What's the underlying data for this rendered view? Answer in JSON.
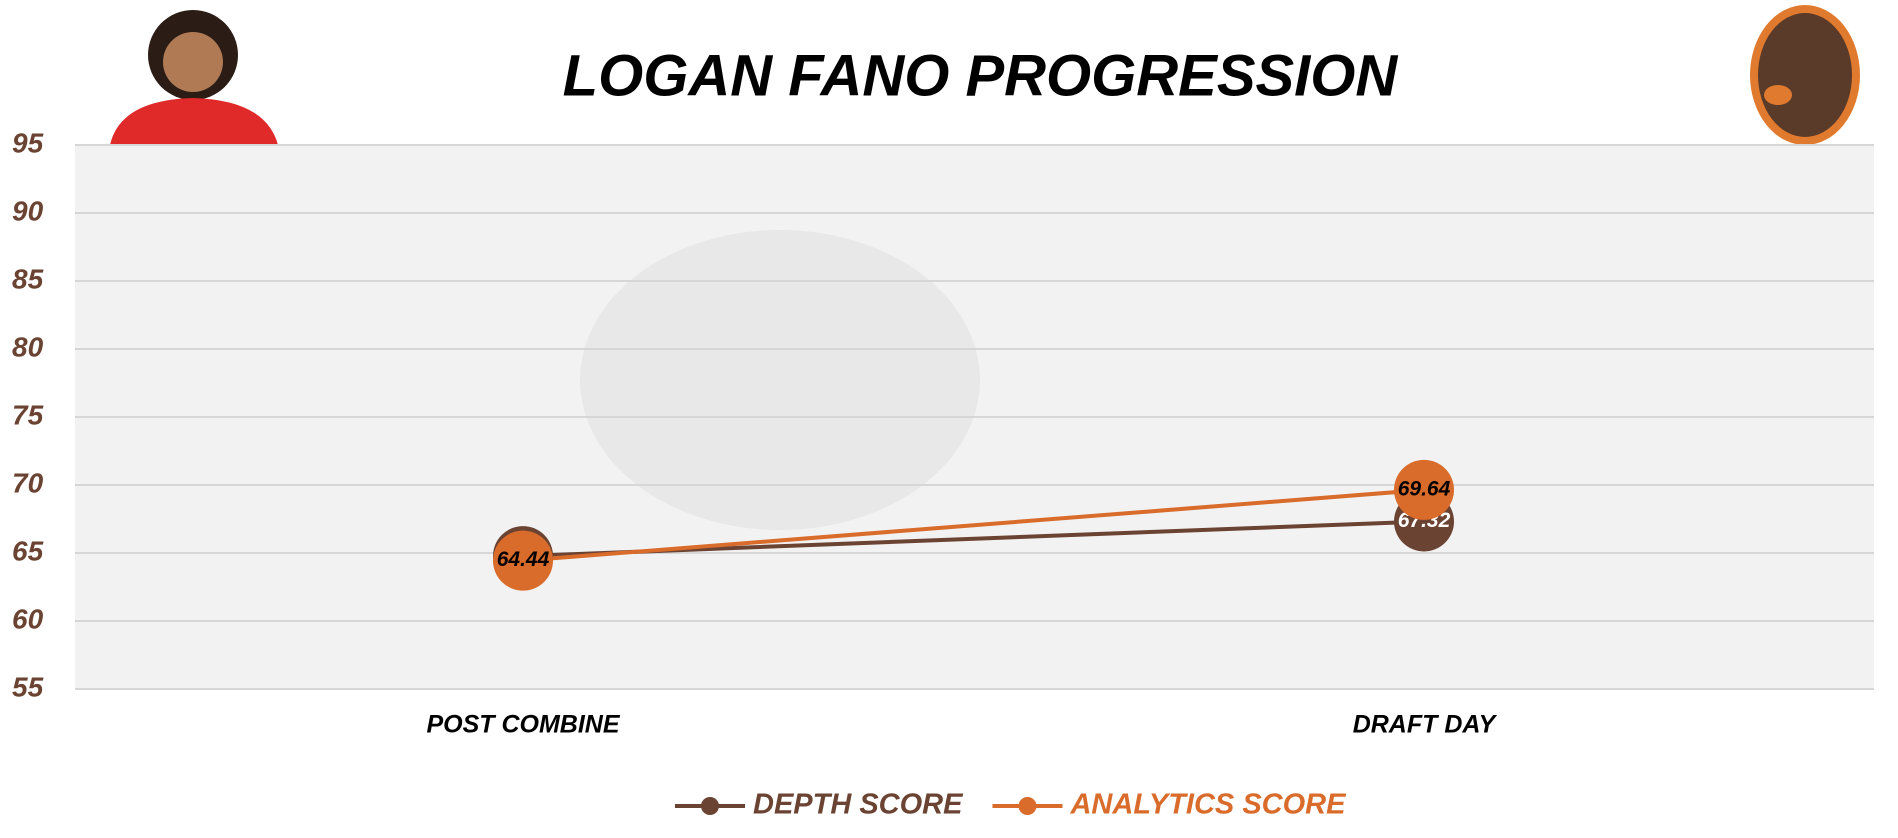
{
  "chart_data": {
    "type": "line",
    "title": "LOGAN FANO PROGRESSION",
    "categories": [
      "POST COMBINE",
      "DRAFT DAY"
    ],
    "series": [
      {
        "name": "DEPTH SCORE",
        "color": "#6b4332",
        "values": [
          64.77,
          67.32
        ]
      },
      {
        "name": "ANALYTICS SCORE",
        "color": "#d96b2b",
        "values": [
          64.44,
          69.64
        ]
      }
    ],
    "ylim": [
      55,
      95
    ],
    "yticks": [
      55,
      60,
      65,
      70,
      75,
      80,
      85,
      90,
      95
    ],
    "grid": true,
    "legend": "bottom"
  }
}
